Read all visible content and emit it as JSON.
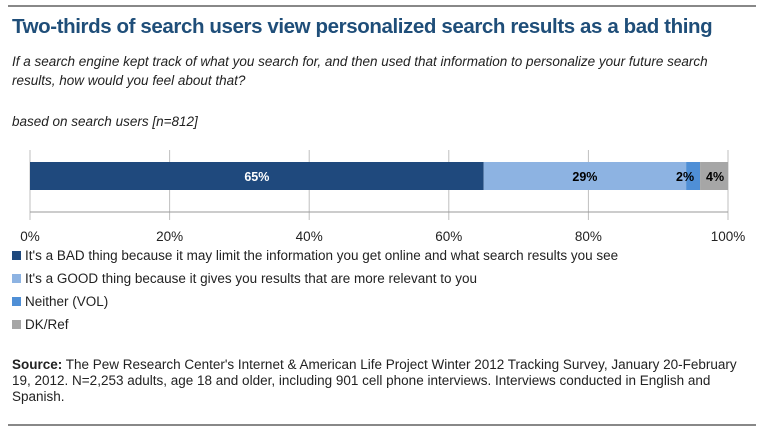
{
  "chart_data": {
    "type": "bar",
    "orientation": "horizontal-stacked",
    "title": "Two-thirds of search users view personalized search results as a bad thing",
    "subtitle": "If a search engine kept track of what you search for, and then used that information to personalize your future search results, how would you feel about that?",
    "base_note": "based on search users [n=812]",
    "xlim": [
      0,
      100
    ],
    "ticks": [
      "0%",
      "20%",
      "40%",
      "60%",
      "80%",
      "100%"
    ],
    "tick_values": [
      0,
      20,
      40,
      60,
      80,
      100
    ],
    "grid": true,
    "legend_placement": "bottom",
    "series": [
      {
        "name": "It's a BAD thing because it may limit the information you get online and what search results you see",
        "value": 65,
        "label": "65%",
        "color": "#1f497d",
        "label_color": "#ffffff"
      },
      {
        "name": "It's a GOOD thing because it gives you results that are more relevant to you",
        "value": 29,
        "label": "29%",
        "color": "#8db3e2",
        "label_color": "#000000"
      },
      {
        "name": "Neither (VOL)",
        "value": 2,
        "label": "2%",
        "color": "#4f8fd6",
        "label_color": "#000000"
      },
      {
        "name": "DK/Ref",
        "value": 4,
        "label": "4%",
        "color": "#a6a6a6",
        "label_color": "#000000"
      }
    ]
  },
  "source": {
    "label": "Source:",
    "text": " The Pew Research Center's Internet & American Life Project Winter 2012 Tracking Survey, January 20-February 19, 2012. N=2,253 adults, age 18 and older, including 901 cell phone interviews. Interviews conducted in English and Spanish."
  }
}
